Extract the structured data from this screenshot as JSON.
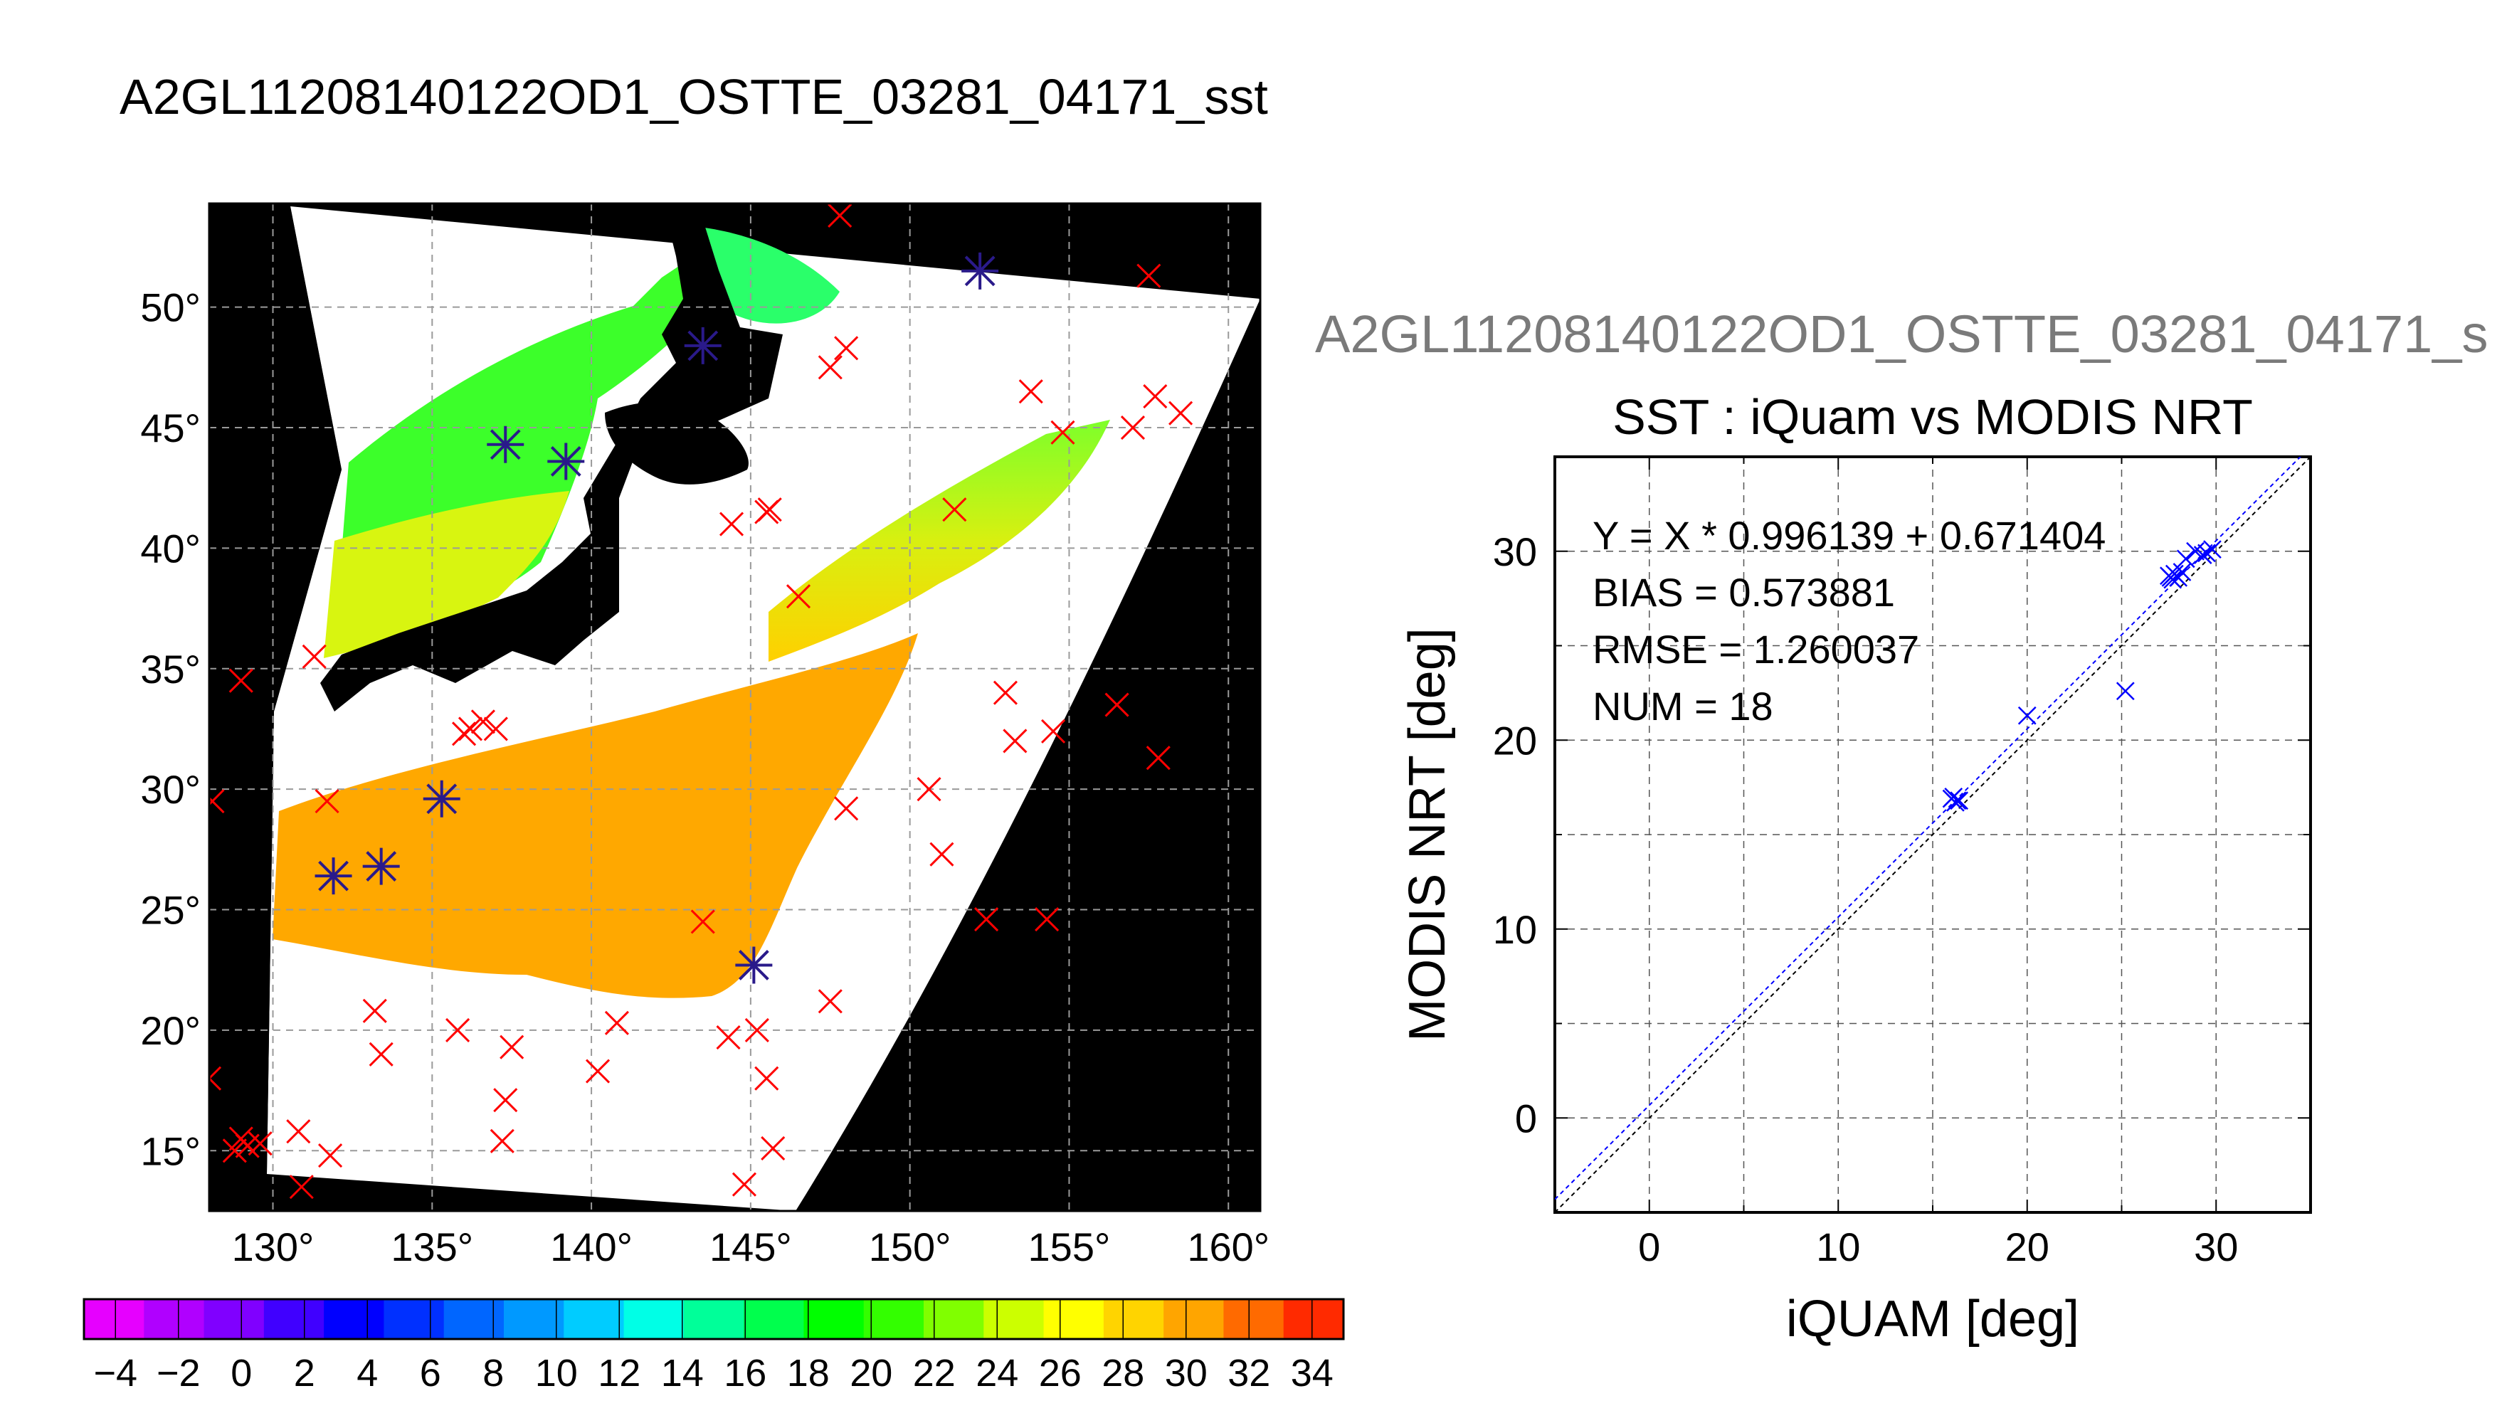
{
  "title": "A2GL11208140122OD1_OSTTE_03281_04171_sst",
  "chart_data": [
    {
      "type": "map",
      "title": "",
      "lon_ticks": [
        130,
        135,
        140,
        145,
        150,
        155,
        160
      ],
      "lat_ticks": [
        15,
        20,
        25,
        30,
        35,
        40,
        45,
        50
      ],
      "lon_tick_labels": [
        "130°",
        "135°",
        "140°",
        "145°",
        "150°",
        "155°",
        "160°"
      ],
      "lat_tick_labels": [
        "15°",
        "20°",
        "25°",
        "30°",
        "35°",
        "40°",
        "45°",
        "50°"
      ],
      "xlim": [
        128,
        161
      ],
      "ylim": [
        12.5,
        54.3
      ],
      "grid": true,
      "series": [
        {
          "name": "",
          "marker": "x",
          "color": "#ff0000",
          "points": [
            [
              131.3,
              35.5
            ],
            [
              129.0,
              34.5
            ],
            [
              128.1,
              29.5
            ],
            [
              131.7,
              29.5
            ],
            [
              136.6,
              32.8
            ],
            [
              137.0,
              32.5
            ],
            [
              136.2,
              32.5
            ],
            [
              136.0,
              32.3
            ],
            [
              133.2,
              20.8
            ],
            [
              133.4,
              19.0
            ],
            [
              135.8,
              20.0
            ],
            [
              137.5,
              19.3
            ],
            [
              137.3,
              17.1
            ],
            [
              137.2,
              15.4
            ],
            [
              128.0,
              18.0
            ],
            [
              129.0,
              15.5
            ],
            [
              129.2,
              15.2
            ],
            [
              129.6,
              15.3
            ],
            [
              128.8,
              15.0
            ],
            [
              130.8,
              15.8
            ],
            [
              131.8,
              14.8
            ],
            [
              130.9,
              13.5
            ],
            [
              140.2,
              18.3
            ],
            [
              140.8,
              20.3
            ],
            [
              143.5,
              24.5
            ],
            [
              144.3,
              19.7
            ],
            [
              145.2,
              20.0
            ],
            [
              145.5,
              18.0
            ],
            [
              145.7,
              15.1
            ],
            [
              144.8,
              13.6
            ],
            [
              147.5,
              21.2
            ],
            [
              146.5,
              38.0
            ],
            [
              144.4,
              41.0
            ],
            [
              145.5,
              41.5
            ],
            [
              145.6,
              41.6
            ],
            [
              148.0,
              29.2
            ],
            [
              150.6,
              30.0
            ],
            [
              151.0,
              27.3
            ],
            [
              152.4,
              24.6
            ],
            [
              154.3,
              24.6
            ],
            [
              153.0,
              34.0
            ],
            [
              153.3,
              32.0
            ],
            [
              154.5,
              32.4
            ],
            [
              156.5,
              33.5
            ],
            [
              157.8,
              31.3
            ],
            [
              151.4,
              41.6
            ],
            [
              147.5,
              47.5
            ],
            [
              148.0,
              48.3
            ],
            [
              153.8,
              46.5
            ],
            [
              154.8,
              44.8
            ],
            [
              157.0,
              45.0
            ],
            [
              157.7,
              46.3
            ],
            [
              158.5,
              45.6
            ],
            [
              157.5,
              51.3
            ],
            [
              147.8,
              53.8
            ]
          ]
        },
        {
          "name": "",
          "marker": "asterisk",
          "color": "#2a1a8a",
          "points": [
            [
              143.5,
              48.4
            ],
            [
              137.3,
              44.3
            ],
            [
              139.2,
              43.6
            ],
            [
              135.3,
              29.6
            ],
            [
              131.9,
              26.4
            ],
            [
              133.4,
              26.8
            ],
            [
              145.1,
              22.7
            ],
            [
              152.2,
              51.5
            ]
          ]
        }
      ]
    },
    {
      "type": "colorbar",
      "title": "",
      "range": [
        -5,
        35
      ],
      "tick_labels": [
        "−4",
        "−2",
        "0",
        "2",
        "4",
        "6",
        "8",
        "10",
        "12",
        "14",
        "16",
        "18",
        "20",
        "22",
        "24",
        "26",
        "28",
        "30",
        "32",
        "34"
      ],
      "tick_values": [
        -4,
        -2,
        0,
        2,
        4,
        6,
        8,
        10,
        12,
        14,
        16,
        18,
        20,
        22,
        24,
        26,
        28,
        30,
        32,
        34
      ],
      "colors": [
        "#e600ff",
        "#b000ff",
        "#8000ff",
        "#4000ff",
        "#0000ff",
        "#0030ff",
        "#0066ff",
        "#0099ff",
        "#00ccff",
        "#00ffe6",
        "#00ff99",
        "#00ff4d",
        "#00ff00",
        "#33ff00",
        "#80ff00",
        "#ccff00",
        "#ffff00",
        "#ffd400",
        "#ffa500",
        "#ff6a00",
        "#ff2a00"
      ]
    },
    {
      "type": "scatter",
      "file_title": "A2GL11208140122OD1_OSTTE_03281_04171_s",
      "title": "SST : iQuam vs MODIS NRT",
      "xlabel": "iQUAM [deg]",
      "ylabel": "MODIS NRT [deg]",
      "xlim": [
        -5,
        35
      ],
      "ylim": [
        -5,
        35
      ],
      "x_ticks": [
        0,
        10,
        20,
        30
      ],
      "y_ticks": [
        0,
        10,
        20,
        30
      ],
      "x_tick_labels": [
        "0",
        "10",
        "20",
        "30"
      ],
      "y_tick_labels": [
        "0",
        "10",
        "20",
        "30"
      ],
      "grid": true,
      "annotations": [
        "Y = X * 0.996139 + 0.671404",
        "BIAS = 0.573881",
        "RMSE = 1.260037",
        "NUM = 18"
      ],
      "fit": {
        "slope": 0.996139,
        "intercept": 0.671404
      },
      "marker_color": "#0000ff",
      "series": [
        {
          "name": "",
          "x": [
            16.0,
            16.2,
            16.4,
            16.1,
            20.0,
            25.2,
            27.6,
            27.8,
            27.7,
            28.0,
            28.4,
            28.9,
            29.3,
            29.8,
            27.5,
            16.3,
            28.2,
            29.5
          ],
          "y": [
            16.9,
            16.7,
            16.8,
            17.0,
            21.3,
            22.6,
            28.6,
            28.8,
            28.5,
            28.6,
            29.6,
            30.0,
            29.8,
            30.1,
            28.7,
            16.8,
            28.9,
            29.9
          ]
        }
      ]
    }
  ]
}
